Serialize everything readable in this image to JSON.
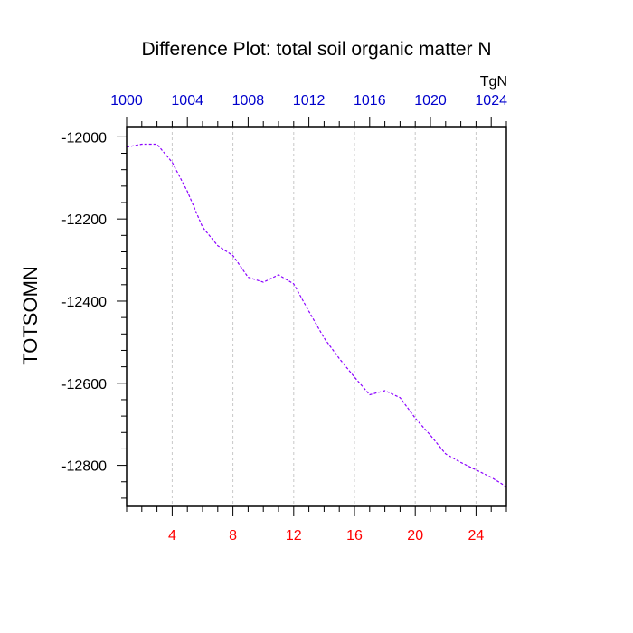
{
  "chart_data": {
    "type": "line",
    "title": "Difference Plot: total soil organic matter N",
    "ylabel": "TOTSOMN",
    "units_label": "TgN",
    "xlabel": "",
    "xlim": [
      1,
      26
    ],
    "ylim": [
      -12900,
      -11975
    ],
    "grid": "vertical-dashed",
    "bottom_axis": {
      "ticks": [
        4,
        8,
        12,
        16,
        20,
        24
      ],
      "tick_labels": [
        "4",
        "8",
        "12",
        "16",
        "20",
        "24"
      ],
      "color": "#ff0000"
    },
    "top_axis": {
      "ticks": [
        1000,
        1004,
        1008,
        1012,
        1016,
        1020,
        1024
      ],
      "tick_labels": [
        "1000",
        "1004",
        "1008",
        "1012",
        "1016",
        "1020",
        "1024"
      ],
      "value_offset": 999,
      "color": "#0000cc"
    },
    "left_axis": {
      "ticks": [
        -12000,
        -12200,
        -12400,
        -12600,
        -12800
      ],
      "tick_labels": [
        "-12000",
        "-12200",
        "-12400",
        "-12600",
        "-12800"
      ]
    },
    "series": [
      {
        "color": "#8b00ff",
        "style": "dashed",
        "x": [
          1,
          2,
          3,
          4,
          5,
          6,
          7,
          8,
          9,
          10,
          11,
          12,
          13,
          14,
          15,
          16,
          17,
          18,
          19,
          20,
          21,
          22,
          23,
          24,
          25,
          26
        ],
        "y": [
          -12025,
          -12018,
          -12018,
          -12062,
          -12133,
          -12220,
          -12265,
          -12289,
          -12342,
          -12354,
          -12336,
          -12358,
          -12425,
          -12490,
          -12540,
          -12585,
          -12628,
          -12618,
          -12635,
          -12685,
          -12727,
          -12772,
          -12793,
          -12811,
          -12829,
          -12852
        ]
      }
    ]
  }
}
